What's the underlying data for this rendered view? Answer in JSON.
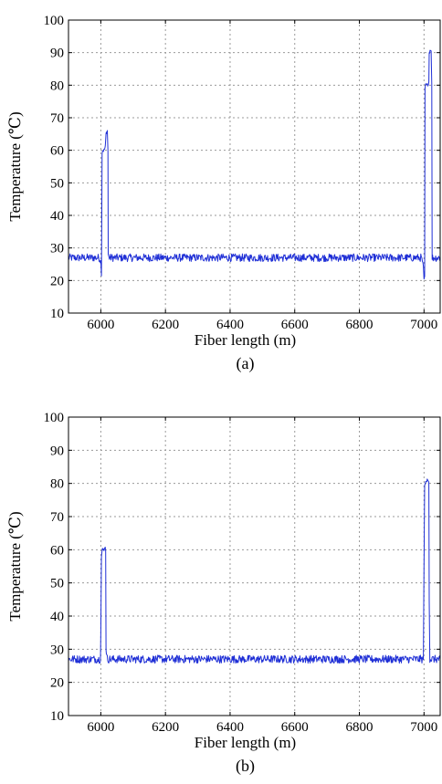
{
  "colors": {
    "series": "#1f2fd6",
    "frame": "#000000",
    "grid": "#9a9a9a"
  },
  "chart_data": [
    {
      "type": "line",
      "panel_label": "(a)",
      "title": "",
      "xlabel": "Fiber length (m)",
      "ylabel": "Temperature (℃)",
      "xlim": [
        5900,
        7050
      ],
      "ylim": [
        10,
        100
      ],
      "xticks": [
        6000,
        6200,
        6400,
        6600,
        6800,
        7000
      ],
      "yticks": [
        10,
        20,
        30,
        40,
        50,
        60,
        70,
        80,
        90,
        100
      ],
      "grid": true,
      "baseline": 27,
      "series": [
        {
          "x": [
            5900,
            5950,
            5995,
            6000,
            6002,
            6004,
            6005,
            6010,
            6014,
            6016,
            6020,
            6022,
            6023,
            6025,
            6050,
            6100,
            6200,
            6300,
            6400,
            6500,
            6600,
            6700,
            6800,
            6900,
            6960,
            6990,
            6995,
            6998,
            7000,
            7002,
            7003,
            7005,
            7010,
            7015,
            7016,
            7020,
            7022,
            7024,
            7025,
            7030,
            7050
          ],
          "y": [
            27,
            27,
            27,
            26,
            22,
            59,
            60,
            60,
            61,
            65,
            66,
            60,
            28,
            27,
            27,
            27,
            27,
            27,
            27,
            27,
            27,
            27,
            27,
            27,
            27,
            27,
            26,
            24,
            20,
            21,
            79,
            80,
            80,
            81,
            90,
            91,
            91,
            80,
            27,
            27,
            27
          ]
        }
      ]
    },
    {
      "type": "line",
      "panel_label": "(b)",
      "title": "",
      "xlabel": "Fiber length (m)",
      "ylabel": "Temperature (℃)",
      "xlim": [
        5900,
        7050
      ],
      "ylim": [
        10,
        100
      ],
      "xticks": [
        6000,
        6200,
        6400,
        6600,
        6800,
        7000
      ],
      "yticks": [
        10,
        20,
        30,
        40,
        50,
        60,
        70,
        80,
        90,
        100
      ],
      "grid": true,
      "baseline": 27,
      "series": [
        {
          "x": [
            5900,
            5950,
            5995,
            5999,
            6000,
            6002,
            6005,
            6010,
            6012,
            6015,
            6016,
            6020,
            6050,
            6100,
            6200,
            6300,
            6400,
            6500,
            6600,
            6700,
            6800,
            6900,
            6960,
            6995,
            6998,
            7000,
            7002,
            7005,
            7010,
            7015,
            7016,
            7018,
            7020,
            7050
          ],
          "y": [
            27,
            27,
            27,
            27,
            35,
            58,
            60,
            60,
            61,
            60,
            30,
            27,
            27,
            27,
            27,
            27,
            27,
            27,
            27,
            27,
            27,
            27,
            27,
            27,
            27,
            55,
            80,
            80,
            81,
            81,
            45,
            27,
            27,
            27
          ]
        }
      ]
    }
  ]
}
